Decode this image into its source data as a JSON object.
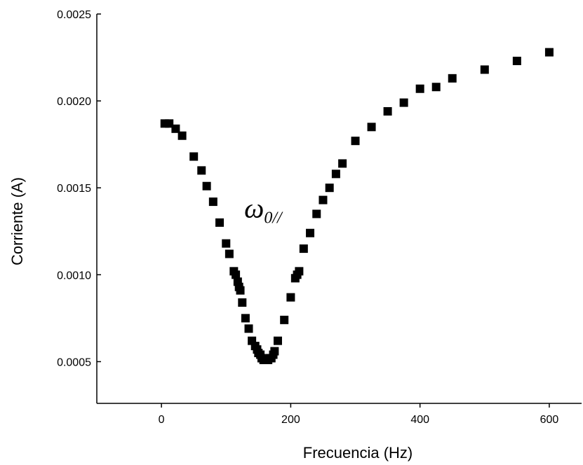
{
  "chart_data": {
    "type": "scatter",
    "xlabel": "Frecuencia (Hz)",
    "ylabel": "Corriente (A)",
    "xlim": [
      -100,
      650
    ],
    "ylim": [
      0.00026,
      0.0025
    ],
    "x_ticks": [
      0,
      200,
      400,
      600
    ],
    "x_tick_labels": [
      "0",
      "200",
      "400",
      "600"
    ],
    "y_ticks": [
      0.0005,
      0.001,
      0.0015,
      0.002,
      0.0025
    ],
    "y_tick_labels": [
      "0.0005",
      "0.0010",
      "0.0015",
      "0.0020",
      "0.0025"
    ],
    "grid": false,
    "marker": "square",
    "marker_color": "#000000",
    "annotation": {
      "symbol": "ω",
      "subscript": "0//",
      "x": 128,
      "y": 0.00133
    },
    "series": [
      {
        "x": [
          5,
          12,
          22,
          32,
          50,
          62,
          70,
          80,
          90,
          100,
          105,
          112,
          115,
          118,
          120,
          122,
          125,
          130,
          135,
          140,
          145,
          148,
          150,
          153,
          155,
          158,
          160,
          163,
          165,
          168,
          170,
          173,
          175,
          180,
          190,
          200,
          207,
          210,
          213,
          220,
          230,
          240,
          250,
          260,
          270,
          280,
          300,
          325,
          350,
          375,
          400,
          425,
          450,
          500,
          550,
          600
        ],
        "y": [
          0.00187,
          0.00187,
          0.00184,
          0.0018,
          0.00168,
          0.0016,
          0.00151,
          0.00142,
          0.0013,
          0.00118,
          0.00112,
          0.00102,
          0.001,
          0.00096,
          0.00093,
          0.00091,
          0.00084,
          0.00075,
          0.00069,
          0.00062,
          0.00059,
          0.00057,
          0.00055,
          0.00054,
          0.00052,
          0.00051,
          0.00051,
          0.00051,
          0.00051,
          0.00052,
          0.00052,
          0.00054,
          0.00056,
          0.00062,
          0.00074,
          0.00087,
          0.00098,
          0.001,
          0.00102,
          0.00115,
          0.00124,
          0.00135,
          0.00143,
          0.0015,
          0.00158,
          0.00164,
          0.00177,
          0.00185,
          0.00194,
          0.00199,
          0.00207,
          0.00208,
          0.00213,
          0.00218,
          0.00223,
          0.00228
        ]
      }
    ]
  }
}
